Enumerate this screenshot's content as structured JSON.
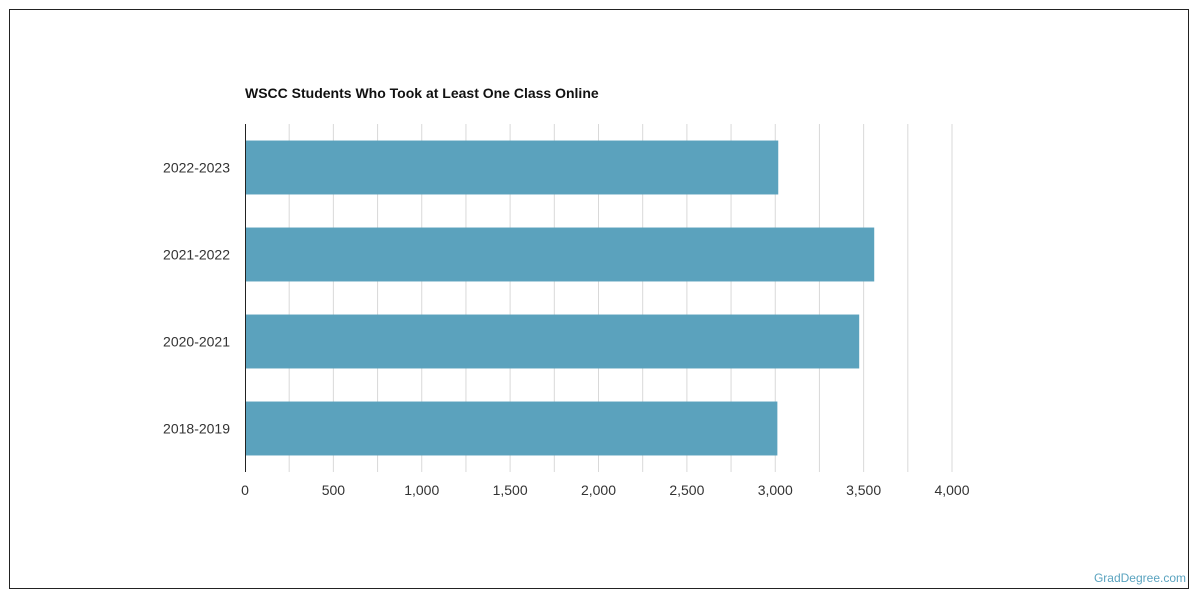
{
  "watermark": "GradDegree.com",
  "colors": {
    "bar": "#5ba2bd",
    "grid": "#d9d9d9",
    "axis": "#222222"
  },
  "chart_data": {
    "type": "bar",
    "orientation": "horizontal",
    "title": "WSCC Students Who Took at Least One Class Online",
    "xlabel": "",
    "ylabel": "",
    "categories": [
      "2022-2023",
      "2021-2022",
      "2020-2021",
      "2018-2019"
    ],
    "values": [
      3017,
      3560,
      3475,
      3012
    ],
    "xlim": [
      0,
      4000
    ],
    "xticks": [
      0,
      500,
      1000,
      1500,
      2000,
      2500,
      3000,
      3500,
      4000
    ],
    "xtick_labels": [
      "0",
      "500",
      "1,000",
      "1,500",
      "2,000",
      "2,500",
      "3,000",
      "3,500",
      "4,000"
    ],
    "grid": true,
    "legend": "none"
  }
}
